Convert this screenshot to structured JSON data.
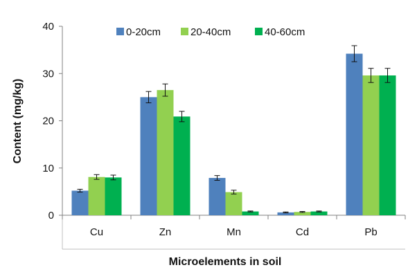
{
  "chart_data": {
    "type": "bar",
    "xlabel": "Microelements in soil",
    "ylabel": "Content (mg/kg)",
    "ylim": [
      0,
      40
    ],
    "yticks": [
      0,
      10,
      20,
      30,
      40
    ],
    "grid": false,
    "legend_position": "top",
    "categories": [
      "Cu",
      "Zn",
      "Mn",
      "Cd",
      "Pb"
    ],
    "series": [
      {
        "name": "0-20cm",
        "color": "#4F81BD",
        "values": [
          5.2,
          25.0,
          7.9,
          0.6,
          34.2
        ],
        "errors": [
          0.3,
          1.2,
          0.5,
          0.1,
          1.7
        ]
      },
      {
        "name": "20-40cm",
        "color": "#92D050",
        "values": [
          8.1,
          26.5,
          4.9,
          0.7,
          29.6
        ],
        "errors": [
          0.5,
          1.3,
          0.4,
          0.1,
          1.5
        ]
      },
      {
        "name": "40-60cm",
        "color": "#00B050",
        "values": [
          8.0,
          20.9,
          0.8,
          0.8,
          29.6
        ],
        "errors": [
          0.5,
          1.1,
          0.1,
          0.1,
          1.5
        ]
      }
    ]
  }
}
